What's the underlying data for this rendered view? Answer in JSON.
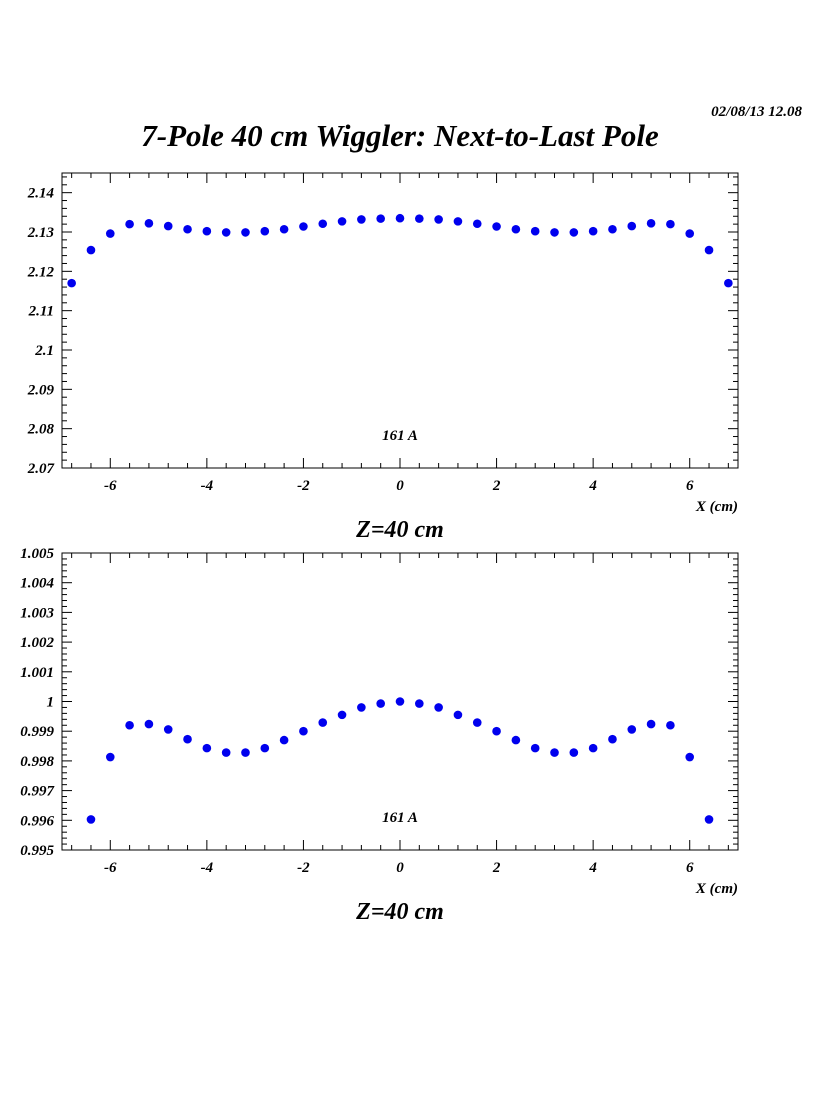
{
  "header": {
    "stamp": "02/08/13   12.08",
    "title": "7-Pole 40 cm Wiggler: Next-to-Last Pole"
  },
  "chart_data": [
    {
      "type": "scatter",
      "title": "",
      "xlabel": "X (cm)",
      "caption": "Z=40 cm",
      "annotation": "161 A",
      "color": "#0000ee",
      "xlim": [
        -7,
        7
      ],
      "ylim": [
        2.07,
        2.145
      ],
      "xticks": [
        -6,
        -4,
        -2,
        0,
        2,
        4,
        6
      ],
      "xtick_labels": [
        "-6",
        "-4",
        "-2",
        "0",
        "2",
        "4",
        "6"
      ],
      "yticks": [
        2.07,
        2.08,
        2.09,
        2.1,
        2.11,
        2.12,
        2.13,
        2.14
      ],
      "ytick_labels": [
        "2.07",
        "2.08",
        "2.09",
        "2.1",
        "2.11",
        "2.12",
        "2.13",
        "2.14"
      ],
      "x": [
        -6.8,
        -6.4,
        -6.0,
        -5.6,
        -5.2,
        -4.8,
        -4.4,
        -4.0,
        -3.6,
        -3.2,
        -2.8,
        -2.4,
        -2.0,
        -1.6,
        -1.2,
        -0.8,
        -0.4,
        0.0,
        0.4,
        0.8,
        1.2,
        1.6,
        2.0,
        2.4,
        2.8,
        3.2,
        3.6,
        4.0,
        4.4,
        4.8,
        5.2,
        5.6,
        6.0,
        6.4,
        6.8
      ],
      "y": [
        2.117,
        2.1254,
        2.1296,
        2.132,
        2.1322,
        2.1315,
        2.1307,
        2.1302,
        2.1299,
        2.1299,
        2.1302,
        2.1307,
        2.1314,
        2.1321,
        2.1327,
        2.1332,
        2.1334,
        2.1335,
        2.1334,
        2.1332,
        2.1327,
        2.1321,
        2.1314,
        2.1307,
        2.1302,
        2.1299,
        2.1299,
        2.1302,
        2.1307,
        2.1315,
        2.1322,
        2.132,
        2.1296,
        2.1254,
        2.117
      ]
    },
    {
      "type": "scatter",
      "title": "",
      "xlabel": "X (cm)",
      "caption": "Z=40 cm",
      "annotation": "161 A",
      "color": "#0000ee",
      "xlim": [
        -7,
        7
      ],
      "ylim": [
        0.995,
        1.005
      ],
      "xticks": [
        -6,
        -4,
        -2,
        0,
        2,
        4,
        6
      ],
      "xtick_labels": [
        "-6",
        "-4",
        "-2",
        "0",
        "2",
        "4",
        "6"
      ],
      "yticks": [
        0.995,
        0.996,
        0.997,
        0.998,
        0.999,
        1.0,
        1.001,
        1.002,
        1.003,
        1.004,
        1.005
      ],
      "ytick_labels": [
        "0.995",
        "0.996",
        "0.997",
        "0.998",
        "0.999",
        "1",
        "1.001",
        "1.002",
        "1.003",
        "1.004",
        "1.005"
      ],
      "x": [
        -6.4,
        -6.0,
        -5.6,
        -5.2,
        -4.8,
        -4.4,
        -4.0,
        -3.6,
        -3.2,
        -2.8,
        -2.4,
        -2.0,
        -1.6,
        -1.2,
        -0.8,
        -0.4,
        0.0,
        0.4,
        0.8,
        1.2,
        1.6,
        2.0,
        2.4,
        2.8,
        3.2,
        3.6,
        4.0,
        4.4,
        4.8,
        5.2,
        5.6,
        6.0,
        6.4
      ],
      "y": [
        0.99603,
        0.99813,
        0.9992,
        0.99924,
        0.99906,
        0.99873,
        0.99843,
        0.99828,
        0.99828,
        0.99843,
        0.9987,
        0.999,
        0.99929,
        0.99955,
        0.9998,
        0.99993,
        1.0,
        0.99993,
        0.9998,
        0.99955,
        0.99929,
        0.999,
        0.9987,
        0.99843,
        0.99828,
        0.99828,
        0.99843,
        0.99873,
        0.99906,
        0.99924,
        0.9992,
        0.99813,
        0.99603
      ]
    }
  ]
}
